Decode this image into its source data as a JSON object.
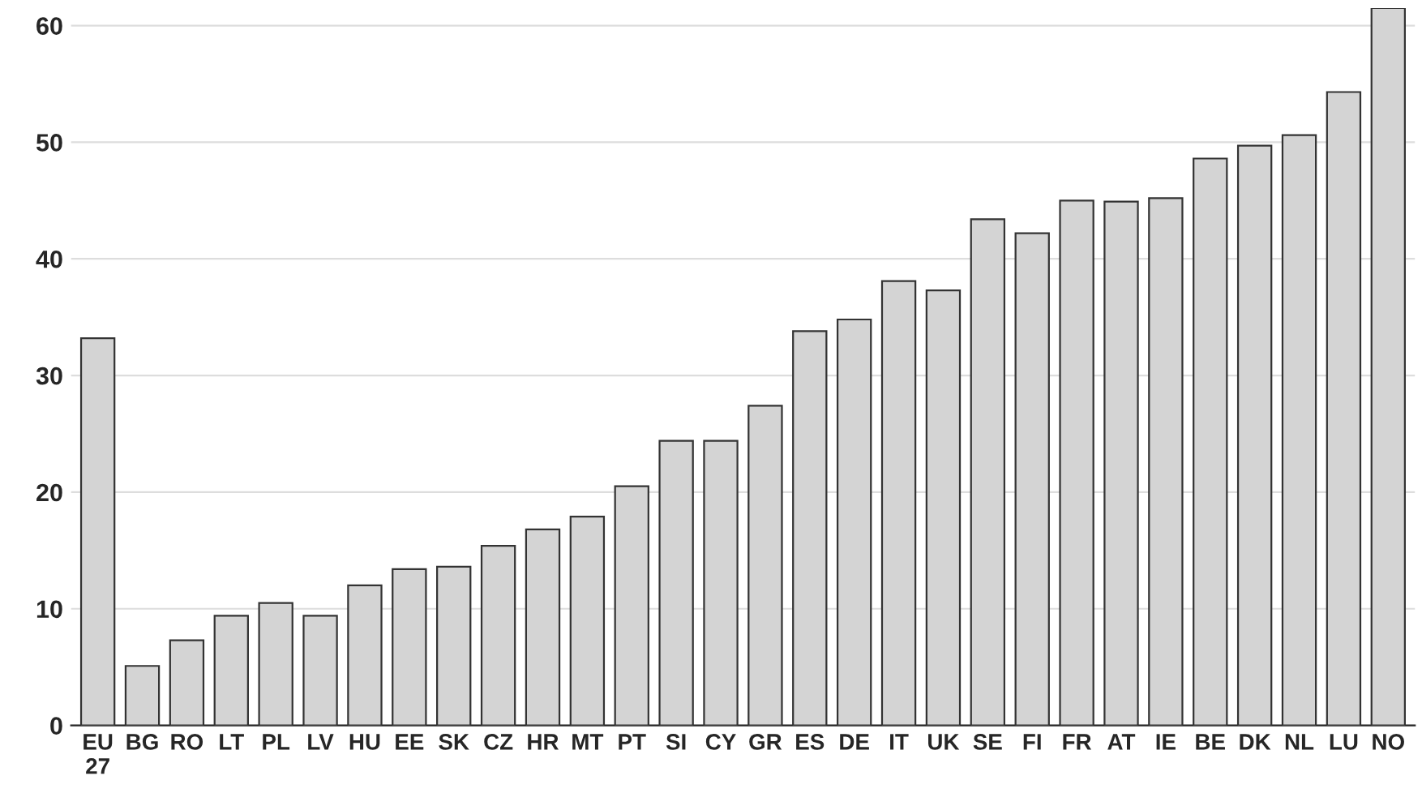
{
  "chart_data": {
    "type": "bar",
    "categories": [
      "EU\n27",
      "BG",
      "RO",
      "LT",
      "PL",
      "LV",
      "HU",
      "EE",
      "SK",
      "CZ",
      "HR",
      "MT",
      "PT",
      "SI",
      "CY",
      "GR",
      "ES",
      "DE",
      "IT",
      "UK",
      "SE",
      "FI",
      "FR",
      "AT",
      "IE",
      "BE",
      "DK",
      "NL",
      "LU",
      "NO"
    ],
    "values": [
      33.2,
      5.1,
      7.3,
      9.4,
      10.5,
      9.4,
      12.0,
      13.4,
      13.6,
      15.4,
      16.8,
      17.9,
      20.5,
      24.4,
      24.4,
      27.4,
      33.8,
      34.8,
      38.1,
      37.3,
      43.4,
      42.2,
      45.0,
      44.9,
      45.2,
      48.6,
      49.7,
      50.6,
      54.3,
      61.5
    ],
    "color": "#d4d4d4",
    "ylim": [
      0,
      61.5
    ],
    "yticks": [
      0,
      10,
      20,
      30,
      40,
      50,
      60
    ],
    "grid": "y"
  }
}
